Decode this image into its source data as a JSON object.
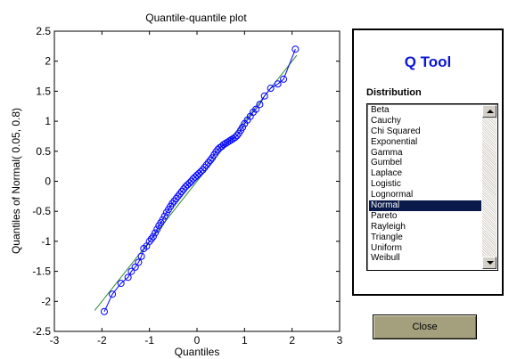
{
  "plot": {
    "title": "Quantile-quantile plot",
    "xlabel": "Quantiles",
    "ylabel": "Quantiles of Normal( 0.05, 0.8)"
  },
  "chart_data": {
    "type": "scatter",
    "title": "Quantile-quantile plot",
    "xlabel": "Quantiles",
    "ylabel": "Quantiles of Normal( 0.05, 0.8)",
    "xlim": [
      -3,
      3
    ],
    "ylim": [
      -2.5,
      2.5
    ],
    "xticks": [
      -3,
      -2,
      -1,
      0,
      1,
      2,
      3
    ],
    "yticks": [
      -2.5,
      -2,
      -1.5,
      -1,
      -0.5,
      0,
      0.5,
      1,
      1.5,
      2,
      2.5
    ],
    "grid": false,
    "series": [
      {
        "kind": "markers+line",
        "color": "#0000ff",
        "marker": "circle",
        "x": [
          -1.95,
          -1.78,
          -1.6,
          -1.45,
          -1.38,
          -1.3,
          -1.23,
          -1.17,
          -1.12,
          -1.06,
          -1.0,
          -0.96,
          -0.92,
          -0.88,
          -0.84,
          -0.8,
          -0.76,
          -0.72,
          -0.68,
          -0.64,
          -0.6,
          -0.56,
          -0.52,
          -0.48,
          -0.44,
          -0.4,
          -0.36,
          -0.32,
          -0.28,
          -0.24,
          -0.2,
          -0.16,
          -0.12,
          -0.08,
          -0.04,
          0.0,
          0.04,
          0.08,
          0.12,
          0.16,
          0.2,
          0.24,
          0.28,
          0.32,
          0.36,
          0.4,
          0.44,
          0.48,
          0.52,
          0.56,
          0.6,
          0.64,
          0.68,
          0.72,
          0.76,
          0.8,
          0.84,
          0.88,
          0.92,
          0.96,
          1.0,
          1.06,
          1.12,
          1.18,
          1.24,
          1.32,
          1.42,
          1.55,
          1.7,
          1.82,
          2.07
        ],
        "y": [
          -2.17,
          -1.88,
          -1.7,
          -1.6,
          -1.5,
          -1.43,
          -1.35,
          -1.25,
          -1.12,
          -1.08,
          -1.0,
          -0.96,
          -0.92,
          -0.86,
          -0.8,
          -0.74,
          -0.69,
          -0.64,
          -0.58,
          -0.52,
          -0.47,
          -0.42,
          -0.37,
          -0.33,
          -0.29,
          -0.25,
          -0.21,
          -0.17,
          -0.13,
          -0.09,
          -0.06,
          -0.03,
          0.0,
          0.04,
          0.07,
          0.1,
          0.13,
          0.16,
          0.19,
          0.23,
          0.27,
          0.31,
          0.35,
          0.39,
          0.44,
          0.49,
          0.53,
          0.56,
          0.58,
          0.61,
          0.63,
          0.65,
          0.67,
          0.69,
          0.71,
          0.73,
          0.76,
          0.8,
          0.85,
          0.9,
          0.96,
          1.02,
          1.08,
          1.15,
          1.2,
          1.28,
          1.42,
          1.55,
          1.62,
          1.7,
          2.2
        ]
      },
      {
        "kind": "line",
        "color": "#2e8b2e",
        "x": [
          -2.15,
          2.1
        ],
        "y": [
          -2.15,
          2.1
        ]
      }
    ]
  },
  "qtool": {
    "title": "Q Tool",
    "distribution_label": "Distribution",
    "items": [
      "Beta",
      "Cauchy",
      "Chi Squared",
      "Exponential",
      "Gamma",
      "Gumbel",
      "Laplace",
      "Logistic",
      "Lognormal",
      "Normal",
      "Pareto",
      "Rayleigh",
      "Triangle",
      "Uniform",
      "Weibull"
    ],
    "selected": "Normal"
  },
  "close_button": {
    "label": "Close"
  },
  "colors": {
    "title_blue": "#0a16d6",
    "selection": "#0a1a4a",
    "button": "#a4a07e"
  }
}
